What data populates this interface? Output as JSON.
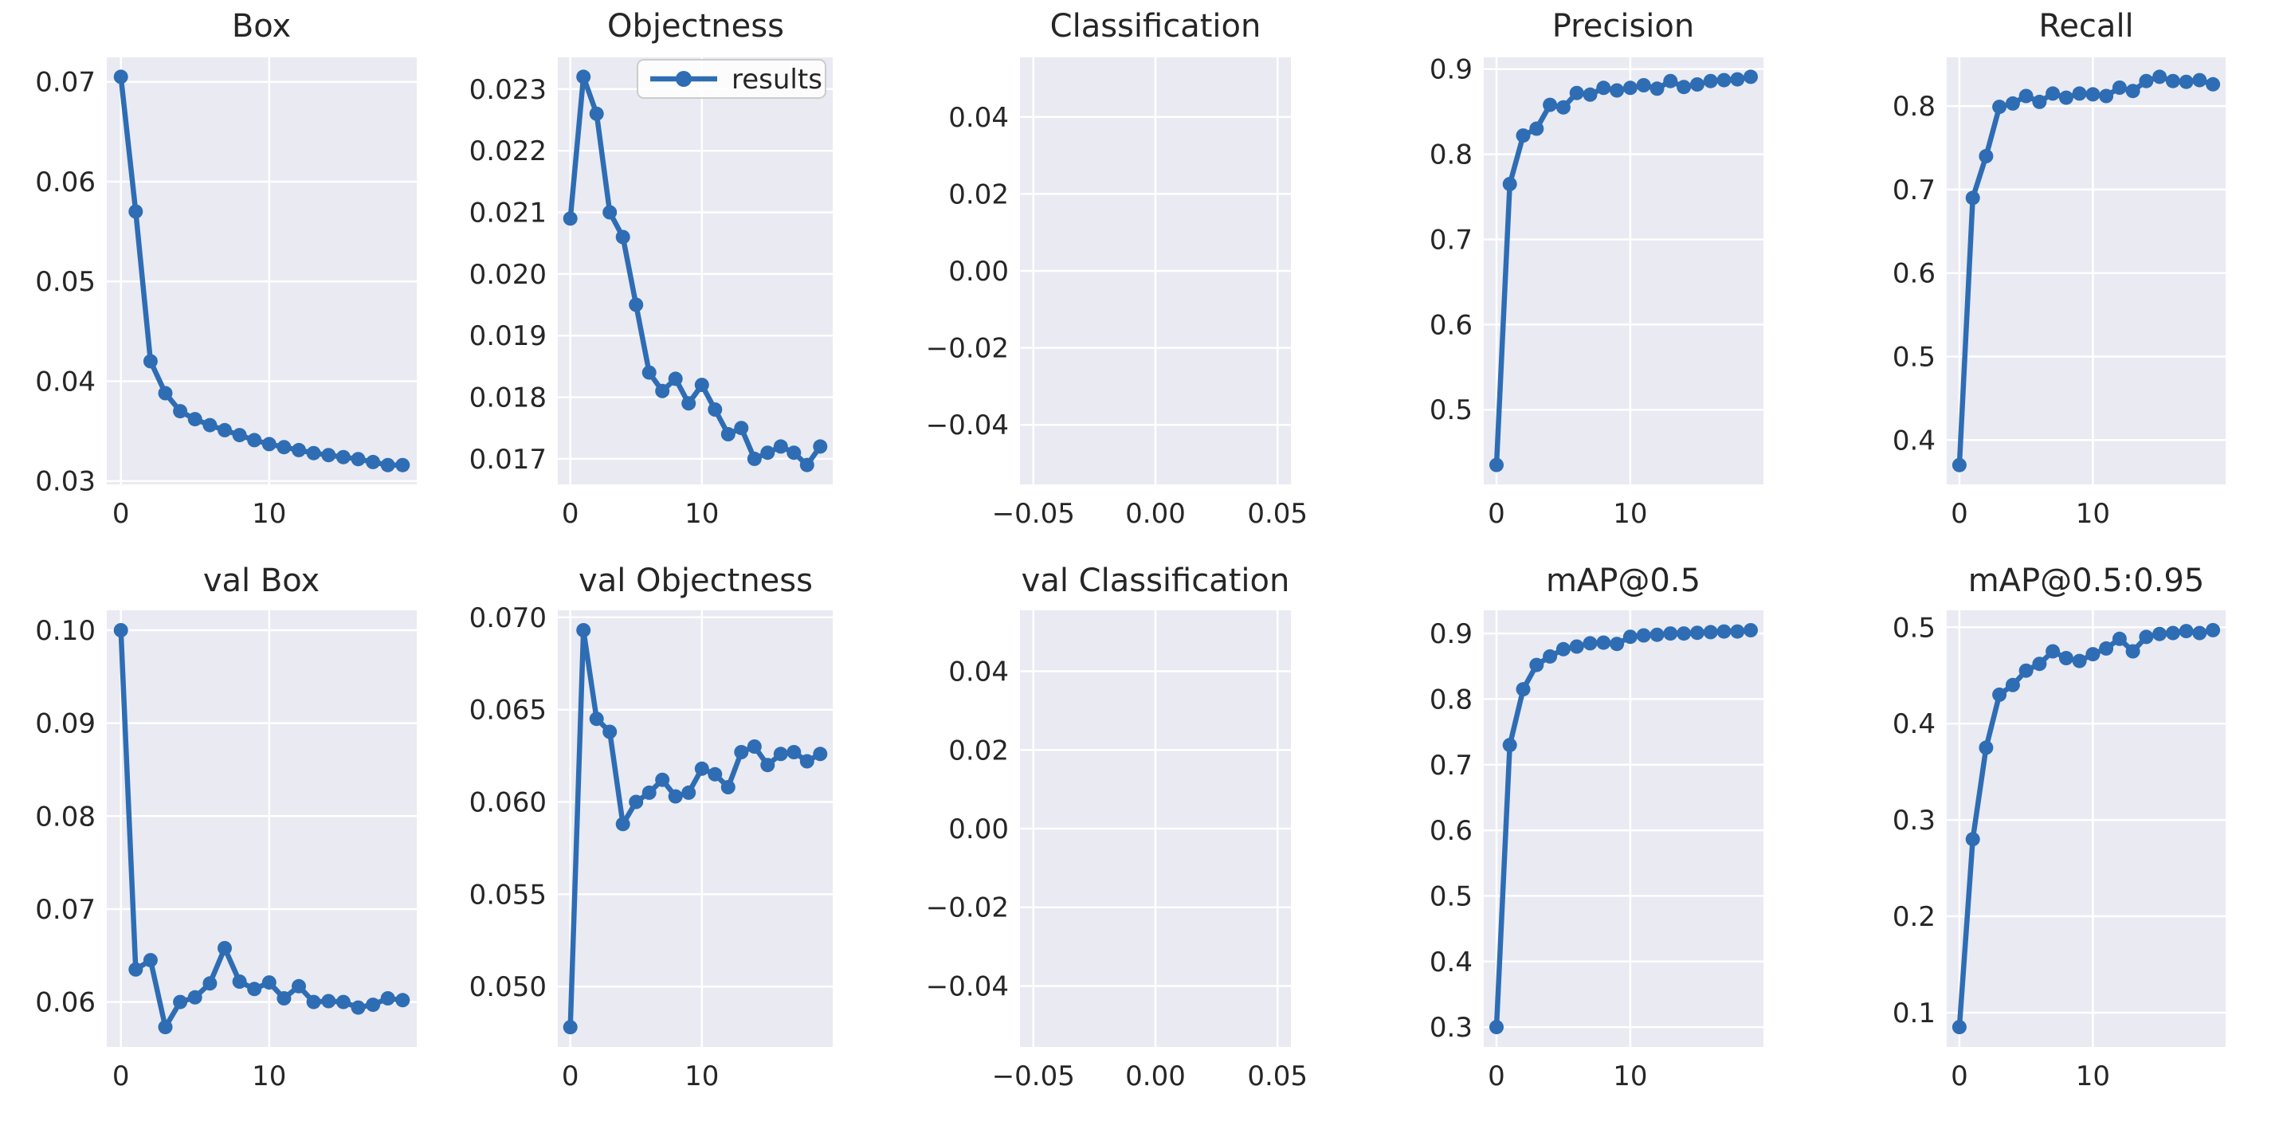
{
  "figure": {
    "background": "#ffffff",
    "axes_bg": "#e9eaf2",
    "grid_color": "#ffffff",
    "line_color": "#2e6db4",
    "text_color": "#262626",
    "legend_label": "results"
  },
  "chart_data": [
    {
      "type": "line",
      "title": "Box",
      "x": [
        0,
        1,
        2,
        3,
        4,
        5,
        6,
        7,
        8,
        9,
        10,
        11,
        12,
        13,
        14,
        15,
        16,
        17,
        18,
        19
      ],
      "values": [
        0.0705,
        0.057,
        0.042,
        0.0388,
        0.037,
        0.0362,
        0.0356,
        0.0351,
        0.0346,
        0.0341,
        0.0337,
        0.0334,
        0.0331,
        0.0328,
        0.0326,
        0.0324,
        0.0322,
        0.0319,
        0.0316,
        0.0316
      ],
      "xlim": [
        -0.95,
        19.95
      ],
      "ylim": [
        0.02966,
        0.07245
      ],
      "xticks": {
        "values": [
          0,
          10
        ],
        "labels": [
          "0",
          "10"
        ]
      },
      "yticks": {
        "values": [
          0.03,
          0.04,
          0.05,
          0.06,
          0.07
        ],
        "labels": [
          "0.03",
          "0.04",
          "0.05",
          "0.06",
          "0.07"
        ]
      },
      "legend": null,
      "grid": true
    },
    {
      "type": "line",
      "title": "Objectness",
      "x": [
        0,
        1,
        2,
        3,
        4,
        5,
        6,
        7,
        8,
        9,
        10,
        11,
        12,
        13,
        14,
        15,
        16,
        17,
        18,
        19
      ],
      "values": [
        0.0209,
        0.0232,
        0.0226,
        0.021,
        0.0206,
        0.0195,
        0.0184,
        0.0181,
        0.0183,
        0.0179,
        0.0182,
        0.0178,
        0.0174,
        0.0175,
        0.017,
        0.0171,
        0.0172,
        0.0171,
        0.0169,
        0.0172
      ],
      "xlim": [
        -0.95,
        19.95
      ],
      "ylim": [
        0.016585,
        0.023515
      ],
      "xticks": {
        "values": [
          0,
          10
        ],
        "labels": [
          "0",
          "10"
        ]
      },
      "yticks": {
        "values": [
          0.017,
          0.018,
          0.019,
          0.02,
          0.021,
          0.022,
          0.023
        ],
        "labels": [
          "0.017",
          "0.018",
          "0.019",
          "0.020",
          "0.021",
          "0.022",
          "0.023"
        ]
      },
      "legend": {
        "label": "results",
        "position": "upper right"
      },
      "grid": true
    },
    {
      "type": "line",
      "title": "Classification",
      "x": [],
      "values": [],
      "xlim": [
        -0.0555,
        0.0555
      ],
      "ylim": [
        -0.0555,
        0.0555
      ],
      "xticks": {
        "values": [
          -0.05,
          0.0,
          0.05
        ],
        "labels": [
          "−0.05",
          "0.00",
          "0.05"
        ]
      },
      "yticks": {
        "values": [
          0.04,
          0.02,
          0.0,
          -0.02,
          -0.04
        ],
        "labels": [
          "0.04",
          "0.02",
          "0.00",
          "−0.02",
          "−0.04"
        ]
      },
      "legend": null,
      "grid": true
    },
    {
      "type": "line",
      "title": "Precision",
      "x": [
        0,
        1,
        2,
        3,
        4,
        5,
        6,
        7,
        8,
        9,
        10,
        11,
        12,
        13,
        14,
        15,
        16,
        17,
        18,
        19
      ],
      "values": [
        0.435,
        0.765,
        0.822,
        0.83,
        0.858,
        0.855,
        0.872,
        0.87,
        0.878,
        0.875,
        0.878,
        0.881,
        0.877,
        0.886,
        0.879,
        0.882,
        0.886,
        0.887,
        0.888,
        0.891
      ],
      "xlim": [
        -0.95,
        19.95
      ],
      "ylim": [
        0.4122,
        0.9138
      ],
      "xticks": {
        "values": [
          0,
          10
        ],
        "labels": [
          "0",
          "10"
        ]
      },
      "yticks": {
        "values": [
          0.5,
          0.6,
          0.7,
          0.8,
          0.9
        ],
        "labels": [
          "0.5",
          "0.6",
          "0.7",
          "0.8",
          "0.9"
        ]
      },
      "legend": null,
      "grid": true
    },
    {
      "type": "line",
      "title": "Recall",
      "x": [
        0,
        1,
        2,
        3,
        4,
        5,
        6,
        7,
        8,
        9,
        10,
        11,
        12,
        13,
        14,
        15,
        16,
        17,
        18,
        19
      ],
      "values": [
        0.37,
        0.69,
        0.74,
        0.799,
        0.803,
        0.812,
        0.805,
        0.815,
        0.81,
        0.815,
        0.814,
        0.812,
        0.822,
        0.818,
        0.83,
        0.835,
        0.83,
        0.829,
        0.831,
        0.826
      ],
      "xlim": [
        -0.95,
        19.95
      ],
      "ylim": [
        0.3468,
        0.8583
      ],
      "xticks": {
        "values": [
          0,
          10
        ],
        "labels": [
          "0",
          "10"
        ]
      },
      "yticks": {
        "values": [
          0.4,
          0.5,
          0.6,
          0.7,
          0.8
        ],
        "labels": [
          "0.4",
          "0.5",
          "0.6",
          "0.7",
          "0.8"
        ]
      },
      "legend": null,
      "grid": true
    },
    {
      "type": "line",
      "title": "val Box",
      "x": [
        0,
        1,
        2,
        3,
        4,
        5,
        6,
        7,
        8,
        9,
        10,
        11,
        12,
        13,
        14,
        15,
        16,
        17,
        18,
        19
      ],
      "values": [
        0.1,
        0.0635,
        0.0645,
        0.0573,
        0.06,
        0.0605,
        0.062,
        0.0658,
        0.0622,
        0.0614,
        0.0621,
        0.0604,
        0.0617,
        0.06,
        0.0601,
        0.06,
        0.0594,
        0.0597,
        0.0604,
        0.0602
      ],
      "xlim": [
        -0.95,
        19.95
      ],
      "ylim": [
        0.05517,
        0.10214
      ],
      "xticks": {
        "values": [
          0,
          10
        ],
        "labels": [
          "0",
          "10"
        ]
      },
      "yticks": {
        "values": [
          0.06,
          0.07,
          0.08,
          0.09,
          0.1
        ],
        "labels": [
          "0.06",
          "0.07",
          "0.08",
          "0.09",
          "0.10"
        ]
      },
      "legend": null,
      "grid": true
    },
    {
      "type": "line",
      "title": "val Objectness",
      "x": [
        0,
        1,
        2,
        3,
        4,
        5,
        6,
        7,
        8,
        9,
        10,
        11,
        12,
        13,
        14,
        15,
        16,
        17,
        18,
        19
      ],
      "values": [
        0.0478,
        0.0693,
        0.0645,
        0.0638,
        0.0588,
        0.06,
        0.0605,
        0.0612,
        0.0603,
        0.0605,
        0.0618,
        0.0615,
        0.0608,
        0.0627,
        0.063,
        0.062,
        0.0626,
        0.0627,
        0.0622,
        0.0626
      ],
      "xlim": [
        -0.95,
        19.95
      ],
      "ylim": [
        0.04673,
        0.07038
      ],
      "xticks": {
        "values": [
          0,
          10
        ],
        "labels": [
          "0",
          "10"
        ]
      },
      "yticks": {
        "values": [
          0.05,
          0.055,
          0.06,
          0.065,
          0.07
        ],
        "labels": [
          "0.050",
          "0.055",
          "0.060",
          "0.065",
          "0.070"
        ]
      },
      "legend": null,
      "grid": true
    },
    {
      "type": "line",
      "title": "val Classification",
      "x": [],
      "values": [],
      "xlim": [
        -0.0555,
        0.0555
      ],
      "ylim": [
        -0.0555,
        0.0555
      ],
      "xticks": {
        "values": [
          -0.05,
          0.0,
          0.05
        ],
        "labels": [
          "−0.05",
          "0.00",
          "0.05"
        ]
      },
      "yticks": {
        "values": [
          0.04,
          0.02,
          0.0,
          -0.02,
          -0.04
        ],
        "labels": [
          "0.04",
          "0.02",
          "0.00",
          "−0.02",
          "−0.04"
        ]
      },
      "legend": null,
      "grid": true
    },
    {
      "type": "line",
      "title": "mAP@0.5",
      "x": [
        0,
        1,
        2,
        3,
        4,
        5,
        6,
        7,
        8,
        9,
        10,
        11,
        12,
        13,
        14,
        15,
        16,
        17,
        18,
        19
      ],
      "values": [
        0.3,
        0.73,
        0.815,
        0.852,
        0.865,
        0.876,
        0.88,
        0.885,
        0.886,
        0.884,
        0.895,
        0.897,
        0.898,
        0.9,
        0.9,
        0.901,
        0.902,
        0.903,
        0.903,
        0.905
      ],
      "xlim": [
        -0.95,
        19.95
      ],
      "ylim": [
        0.2698,
        0.9353
      ],
      "xticks": {
        "values": [
          0,
          10
        ],
        "labels": [
          "0",
          "10"
        ]
      },
      "yticks": {
        "values": [
          0.3,
          0.4,
          0.5,
          0.6,
          0.7,
          0.8,
          0.9
        ],
        "labels": [
          "0.3",
          "0.4",
          "0.5",
          "0.6",
          "0.7",
          "0.8",
          "0.9"
        ]
      },
      "legend": null,
      "grid": true
    },
    {
      "type": "line",
      "title": "mAP@0.5:0.95",
      "x": [
        0,
        1,
        2,
        3,
        4,
        5,
        6,
        7,
        8,
        9,
        10,
        11,
        12,
        13,
        14,
        15,
        16,
        17,
        18,
        19
      ],
      "values": [
        0.085,
        0.28,
        0.375,
        0.43,
        0.44,
        0.455,
        0.462,
        0.475,
        0.468,
        0.465,
        0.472,
        0.478,
        0.488,
        0.475,
        0.49,
        0.493,
        0.494,
        0.496,
        0.494,
        0.497
      ],
      "xlim": [
        -0.95,
        19.95
      ],
      "ylim": [
        0.0644,
        0.5176
      ],
      "xticks": {
        "values": [
          0,
          10
        ],
        "labels": [
          "0",
          "10"
        ]
      },
      "yticks": {
        "values": [
          0.1,
          0.2,
          0.3,
          0.4,
          0.5
        ],
        "labels": [
          "0.1",
          "0.2",
          "0.3",
          "0.4",
          "0.5"
        ]
      },
      "legend": null,
      "grid": true
    }
  ]
}
